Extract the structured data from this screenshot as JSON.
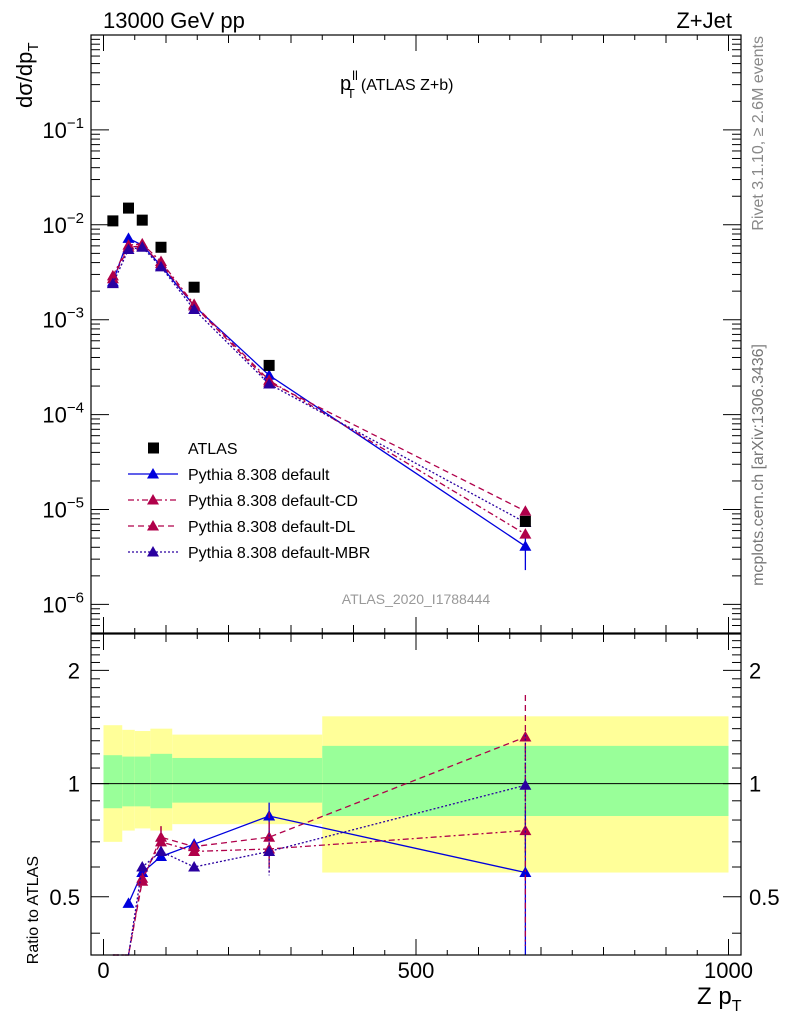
{
  "header": {
    "left_title": "13000 GeV pp",
    "right_title": "Z+Jet"
  },
  "side_labels": {
    "rivet": "Rivet 3.1.10, ≥ 2.6M events",
    "mcplots": "mcplots.cern.ch [arXiv:1306.3436]"
  },
  "analysis_id": "ATLAS_2020_I1788444",
  "plot_title": {
    "main": "p",
    "sup": "ll",
    "sub": "T",
    "rest": "(ATLAS Z+b)"
  },
  "axes": {
    "top_ylabel": {
      "main": "dσ/dp",
      "sub": "T"
    },
    "bottom_ylabel": "Ratio to ATLAS",
    "xlabel": {
      "main": "Z p",
      "sub": "T"
    }
  },
  "legend": [
    {
      "label": "ATLAS",
      "color": "#000000",
      "marker": "square",
      "dash": ""
    },
    {
      "label": "Pythia 8.308 default",
      "color": "#0000dd",
      "marker": "triangle",
      "dash": ""
    },
    {
      "label": "Pythia 8.308 default-CD",
      "color": "#b0004a",
      "marker": "triangle",
      "dash": "6,3,2,3"
    },
    {
      "label": "Pythia 8.308 default-DL",
      "color": "#b0004a",
      "marker": "triangle",
      "dash": "6,4"
    },
    {
      "label": "Pythia 8.308 default-MBR",
      "color": "#2a00a0",
      "marker": "triangle",
      "dash": "2,2"
    }
  ],
  "chart_data": {
    "type": "line",
    "x_ticks_major": [
      0,
      500,
      1000
    ],
    "x_tick_labels": [
      "0",
      "500",
      "1000"
    ],
    "top_panel": {
      "yscale": "log",
      "ylim": [
        5e-07,
        1
      ],
      "y_tick_labels": [
        {
          "value": 1e-06,
          "base": "10",
          "exp": "−6"
        },
        {
          "value": 1e-05,
          "base": "10",
          "exp": "−5"
        },
        {
          "value": 0.0001,
          "base": "10",
          "exp": "−4"
        },
        {
          "value": 0.001,
          "base": "10",
          "exp": "−3"
        },
        {
          "value": 0.01,
          "base": "10",
          "exp": "−2"
        },
        {
          "value": 0.1,
          "base": "10",
          "exp": "−1"
        }
      ],
      "data": {
        "name": "ATLAS",
        "x": [
          15,
          40,
          62,
          92,
          145,
          265,
          675
        ],
        "y": [
          0.011,
          0.015,
          0.0112,
          0.0058,
          0.0022,
          0.00033,
          7.5e-06
        ]
      },
      "series": [
        {
          "name": "Pythia 8.308 default",
          "x": [
            15,
            40,
            62,
            92,
            145,
            265,
            675
          ],
          "y": [
            0.0025,
            0.0072,
            0.0061,
            0.0037,
            0.0014,
            0.00026,
            4.1e-06
          ],
          "err_idx": 6,
          "err_lo": 2.3e-06,
          "err_hi": 6e-06
        },
        {
          "name": "Pythia 8.308 default-CD",
          "x": [
            15,
            40,
            62,
            92,
            145,
            265,
            675
          ],
          "y": [
            0.0029,
            0.0061,
            0.0063,
            0.0041,
            0.00145,
            0.00023,
            5.5e-06
          ]
        },
        {
          "name": "Pythia 8.308 default-DL",
          "x": [
            15,
            40,
            62,
            92,
            145,
            265,
            675
          ],
          "y": [
            0.0027,
            0.0058,
            0.006,
            0.0039,
            0.0014,
            0.00022,
            9.6e-06
          ]
        },
        {
          "name": "Pythia 8.308 default-MBR",
          "x": [
            15,
            40,
            62,
            92,
            145,
            265,
            675
          ],
          "y": [
            0.0024,
            0.0055,
            0.0058,
            0.0036,
            0.00128,
            0.00021,
            7.3e-06
          ]
        }
      ]
    },
    "bottom_panel": {
      "yscale": "log",
      "ylim": [
        0.35,
        2.5
      ],
      "y_tick_labels": [
        {
          "value": 0.5,
          "label": "0.5"
        },
        {
          "value": 1,
          "label": "1"
        },
        {
          "value": 2,
          "label": "2"
        }
      ],
      "bands": [
        {
          "x0": 0,
          "x1": 30,
          "inner": [
            0.86,
            1.19
          ],
          "outer": [
            0.7,
            1.43
          ]
        },
        {
          "x0": 30,
          "x1": 50,
          "inner": [
            0.87,
            1.18
          ],
          "outer": [
            0.75,
            1.39
          ]
        },
        {
          "x0": 50,
          "x1": 75,
          "inner": [
            0.87,
            1.18
          ],
          "outer": [
            0.76,
            1.38
          ]
        },
        {
          "x0": 75,
          "x1": 110,
          "inner": [
            0.86,
            1.2
          ],
          "outer": [
            0.75,
            1.4
          ]
        },
        {
          "x0": 110,
          "x1": 350,
          "inner": [
            0.89,
            1.17
          ],
          "outer": [
            0.78,
            1.35
          ]
        },
        {
          "x0": 350,
          "x1": 1000,
          "inner": [
            0.82,
            1.26
          ],
          "outer": [
            0.58,
            1.51
          ]
        }
      ],
      "series": [
        {
          "name": "Pythia 8.308 default",
          "x": [
            40,
            62,
            92,
            145,
            265,
            675
          ],
          "y": [
            0.48,
            0.58,
            0.64,
            0.69,
            0.82,
            0.58
          ],
          "errors": [
            null,
            null,
            null,
            null,
            [
              0.75,
              0.89
            ],
            [
              0.31,
              0.85
            ]
          ]
        },
        {
          "name": "Pythia 8.308 default-CD",
          "x": [
            15,
            40,
            62,
            92,
            145,
            265,
            675
          ],
          "y": [
            0.26,
            0.34,
            0.56,
            0.7,
            0.66,
            0.67,
            0.75
          ],
          "errors": [
            null,
            null,
            null,
            [
              0.66,
              0.77
            ],
            null,
            [
              0.58,
              0.76
            ],
            [
              0.37,
              1.35
            ]
          ]
        },
        {
          "name": "Pythia 8.308 default-DL",
          "x": [
            15,
            40,
            62,
            92,
            145,
            265,
            675
          ],
          "y": [
            0.24,
            0.32,
            0.55,
            0.72,
            0.68,
            0.72,
            1.33
          ],
          "errors": [
            null,
            null,
            null,
            [
              0.67,
              0.77
            ],
            null,
            [
              0.6,
              0.84
            ],
            [
              0.9,
              1.72
            ]
          ]
        },
        {
          "name": "Pythia 8.308 default-MBR",
          "x": [
            15,
            40,
            62,
            92,
            145,
            265,
            675
          ],
          "y": [
            0.22,
            0.32,
            0.6,
            0.66,
            0.6,
            0.66,
            0.99
          ],
          "errors": [
            null,
            null,
            null,
            null,
            null,
            [
              0.57,
              0.75
            ],
            [
              0.65,
              1.35
            ]
          ]
        }
      ]
    }
  }
}
